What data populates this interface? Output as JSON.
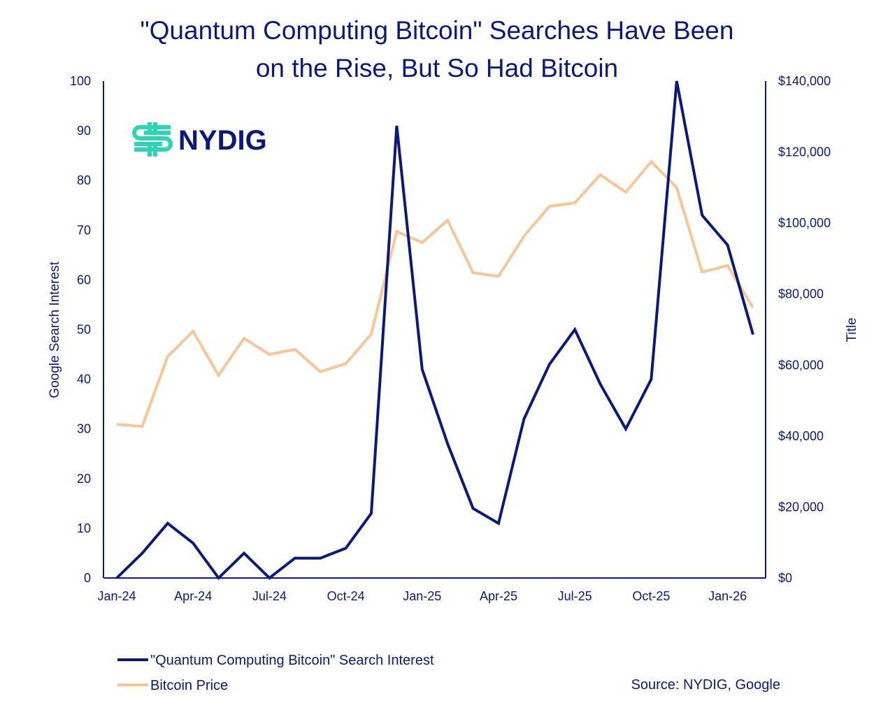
{
  "chart_data": {
    "type": "line",
    "title": "\"Quantum Computing Bitcoin\" Searches Have Been on the Rise, But So Had Bitcoin",
    "title_lines": [
      "\"Quantum Computing Bitcoin\" Searches Have Been",
      "on the Rise, But So Had Bitcoin"
    ],
    "x": [
      "Jan-24",
      "Feb-24",
      "Mar-24",
      "Apr-24",
      "May-24",
      "Jun-24",
      "Jul-24",
      "Aug-24",
      "Sep-24",
      "Oct-24",
      "Nov-24",
      "Dec-24",
      "Jan-25",
      "Feb-25",
      "Mar-25",
      "Apr-25",
      "May-25",
      "Jun-25",
      "Jul-25",
      "Aug-25",
      "Sep-25",
      "Oct-25",
      "Nov-25",
      "Dec-25",
      "Jan-26",
      "Feb-26"
    ],
    "x_tick_labels": [
      "Jan-24",
      "Apr-24",
      "Jul-24",
      "Oct-24",
      "Jan-25",
      "Apr-25",
      "Jul-25",
      "Oct-25",
      "Jan-26"
    ],
    "ylabel": "Google Search Interest",
    "ylim": [
      0,
      100
    ],
    "y_ticks": [
      "0",
      "10",
      "20",
      "30",
      "40",
      "50",
      "60",
      "70",
      "80",
      "90",
      "100"
    ],
    "y2label": "Title",
    "y2lim": [
      0,
      140000
    ],
    "y2_ticks": [
      "$0",
      "$20,000",
      "$40,000",
      "$60,000",
      "$80,000",
      "$100,000",
      "$120,000",
      "$140,000"
    ],
    "grid": false,
    "legend_placement": "bottom-left",
    "series": [
      {
        "name": "\"Quantum Computing Bitcoin\" Search Interest",
        "axis": "left",
        "color": "#0b1a78",
        "values": [
          0,
          5,
          11,
          7,
          0,
          5,
          0,
          4,
          4,
          6,
          13,
          91,
          42,
          27,
          14,
          11,
          32,
          43,
          50,
          39,
          30,
          40,
          100,
          73,
          67,
          49
        ]
      },
      {
        "name": "Bitcoin Price",
        "axis": "right",
        "color": "#f9c497",
        "values": [
          43300,
          42700,
          62400,
          69500,
          57100,
          67500,
          63000,
          64400,
          58100,
          60400,
          68700,
          97600,
          94500,
          100800,
          86000,
          85000,
          96300,
          104700,
          105700,
          113600,
          108700,
          117300,
          110000,
          86200,
          88000,
          76200
        ]
      }
    ],
    "source": "Source: NYDIG, Google"
  },
  "logo": {
    "text": "NYDIG",
    "color_mark": "#2fd3b5",
    "color_text": "#0b1a78"
  }
}
